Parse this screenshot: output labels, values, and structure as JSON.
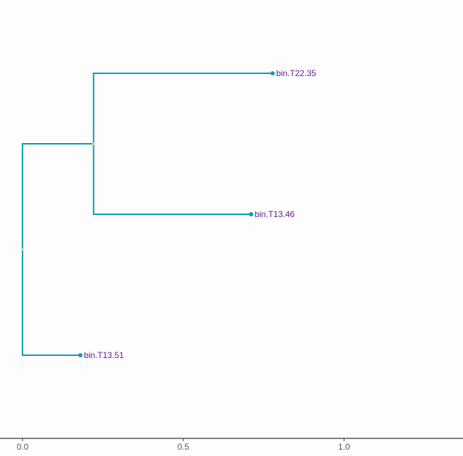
{
  "chart_data": {
    "type": "tree",
    "tree": {
      "x": 0,
      "children": [
        {
          "x": 0.221,
          "children": [
            {
              "label": "bin.T22.35",
              "x": 0.778
            },
            {
              "label": "bin.T13.46",
              "x": 0.711
            }
          ]
        },
        {
          "label": "bin.T13.51",
          "x": 0.18
        }
      ]
    },
    "xlim": [
      -0.07,
      1.37
    ],
    "xticks": [
      {
        "value": 0,
        "label": "0.0"
      },
      0.5,
      {
        "value": 1,
        "label": "1.0"
      }
    ],
    "color": "#0a9bb8",
    "label_color": "#5e1f8c",
    "node_color": "#d6d08a"
  }
}
